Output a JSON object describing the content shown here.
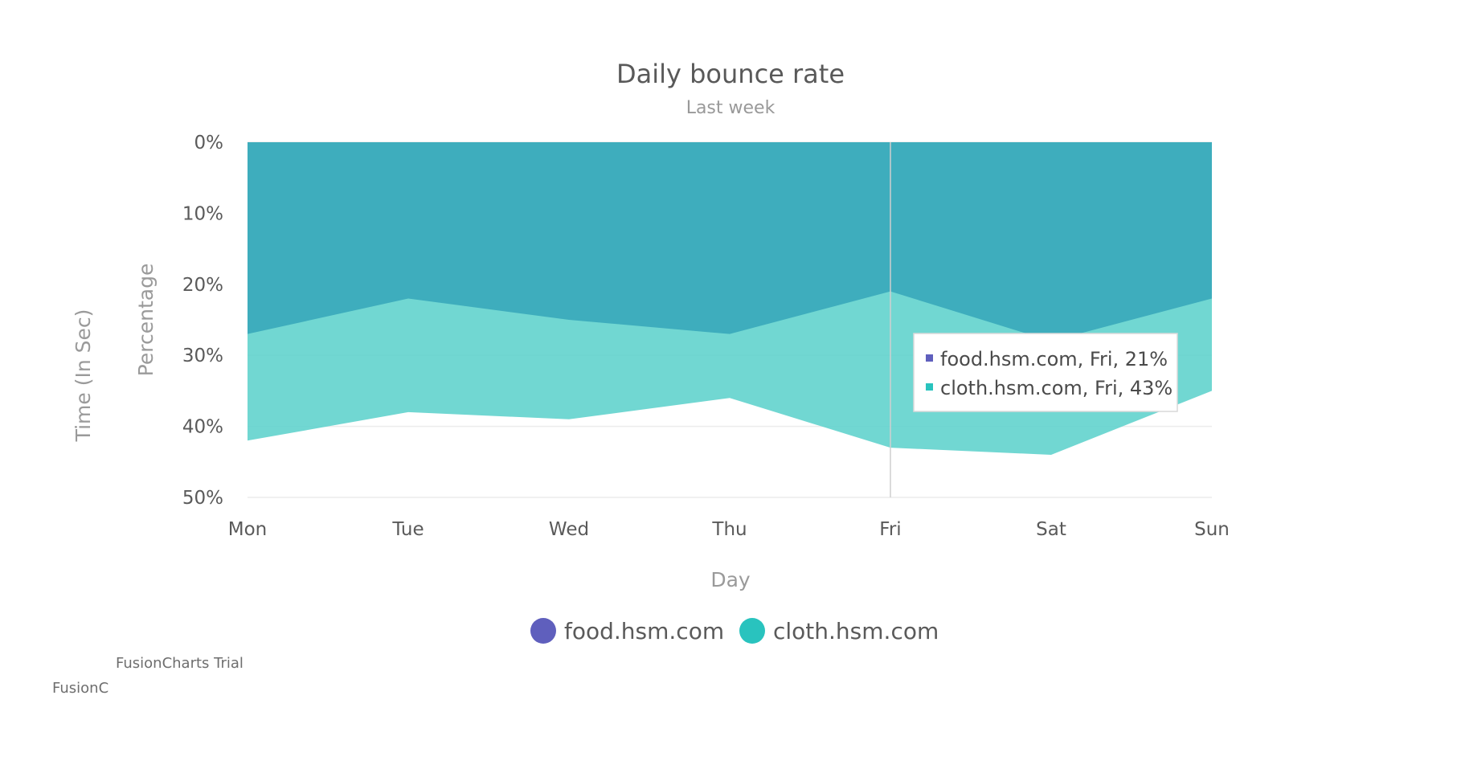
{
  "chart_data": {
    "type": "area",
    "title": "Daily bounce rate",
    "subtitle": "Last week",
    "xlabel": "Day",
    "ylabel": "Percentage",
    "y2label": "Time (In Sec)",
    "categories": [
      "Mon",
      "Tue",
      "Wed",
      "Thu",
      "Fri",
      "Sat",
      "Sun"
    ],
    "y_ticks": [
      "0%",
      "10%",
      "20%",
      "30%",
      "40%",
      "50%"
    ],
    "ylim": [
      0,
      50
    ],
    "y_inverted": true,
    "grid": true,
    "series": [
      {
        "name": "food.hsm.com",
        "color": "#5f5fbd",
        "values": [
          27,
          22,
          25,
          27,
          21,
          28,
          22
        ]
      },
      {
        "name": "cloth.hsm.com",
        "color": "#29c3be",
        "values": [
          42,
          38,
          39,
          36,
          43,
          44,
          35
        ]
      }
    ],
    "legend": {
      "position": "bottom"
    },
    "tooltip": {
      "category": "Fri",
      "lines": [
        "food.hsm.com, Fri, 21%",
        "cloth.hsm.com, Fri, 43%"
      ]
    }
  },
  "watermark": [
    "FusionCharts Trial",
    "FusionC"
  ]
}
